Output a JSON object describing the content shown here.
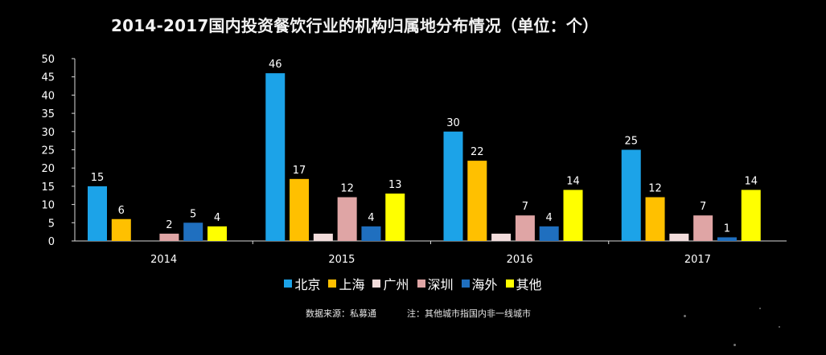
{
  "chart_data": {
    "type": "bar",
    "title": "2014-2017国内投资餐饮行业的机构归属地分布情况（单位：个）",
    "categories": [
      "2014",
      "2015",
      "2016",
      "2017"
    ],
    "ylim": [
      0,
      50
    ],
    "yticks": [
      0,
      5,
      10,
      15,
      20,
      25,
      30,
      35,
      40,
      45,
      50
    ],
    "grid": false,
    "legend_position": "bottom",
    "series": [
      {
        "name": "北京",
        "color": "#1ca3e8",
        "values": [
          15,
          46,
          30,
          25
        ],
        "labels": [
          "15",
          "46",
          "30",
          "25"
        ]
      },
      {
        "name": "上海",
        "color": "#ffc000",
        "values": [
          6,
          17,
          22,
          12
        ],
        "labels": [
          "6",
          "17",
          "22",
          "12"
        ]
      },
      {
        "name": "广州",
        "color": "#f2dcdb",
        "values": [
          0,
          2,
          2,
          2
        ],
        "labels": [
          "",
          "",
          "",
          ""
        ]
      },
      {
        "name": "深圳",
        "color": "#dfa5a5",
        "values": [
          2,
          12,
          7,
          7
        ],
        "labels": [
          "2",
          "12",
          "7",
          "7"
        ]
      },
      {
        "name": "海外",
        "color": "#1f6fbf",
        "values": [
          5,
          4,
          4,
          1
        ],
        "labels": [
          "5",
          "4",
          "4",
          "1"
        ]
      },
      {
        "name": "其他",
        "color": "#ffff00",
        "values": [
          4,
          13,
          14,
          14
        ],
        "labels": [
          "4",
          "13",
          "14",
          "14"
        ]
      }
    ]
  },
  "footnote": {
    "source": "数据来源：私募通",
    "note": "注：其他城市指国内非一线城市"
  }
}
